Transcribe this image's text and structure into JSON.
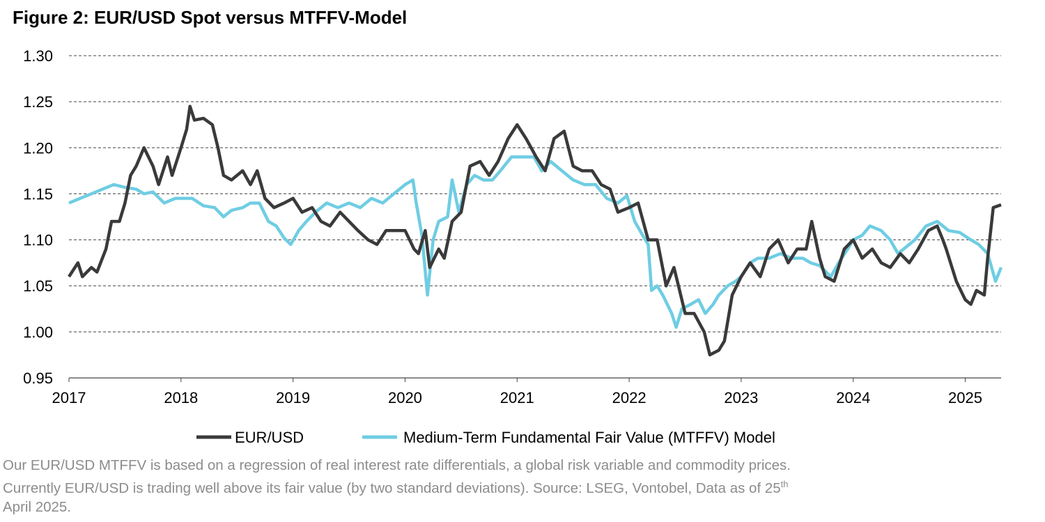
{
  "chart_data": {
    "type": "line",
    "title": "Figure 2: EUR/USD Spot versus MTFFV-Model",
    "xlabel": "",
    "ylabel": "",
    "xlim": [
      2017,
      2025.32
    ],
    "ylim": [
      0.95,
      1.3
    ],
    "yticks": [
      "0.95",
      "1.00",
      "1.05",
      "1.10",
      "1.15",
      "1.20",
      "1.25",
      "1.30"
    ],
    "xticks": [
      "2017",
      "2018",
      "2019",
      "2020",
      "2021",
      "2022",
      "2023",
      "2024",
      "2025"
    ],
    "grid": "horizontal dashed",
    "legend_placement": "bottom",
    "series": [
      {
        "name": "EUR/USD",
        "color": "#3a3a3a",
        "x": [
          2017.0,
          2017.08,
          2017.12,
          2017.2,
          2017.25,
          2017.33,
          2017.38,
          2017.45,
          2017.5,
          2017.55,
          2017.6,
          2017.67,
          2017.75,
          2017.8,
          2017.88,
          2017.92,
          2018.0,
          2018.05,
          2018.08,
          2018.12,
          2018.2,
          2018.28,
          2018.33,
          2018.38,
          2018.45,
          2018.5,
          2018.55,
          2018.62,
          2018.68,
          2018.75,
          2018.83,
          2018.92,
          2019.0,
          2019.08,
          2019.17,
          2019.25,
          2019.33,
          2019.42,
          2019.5,
          2019.58,
          2019.67,
          2019.75,
          2019.83,
          2019.92,
          2020.0,
          2020.08,
          2020.12,
          2020.18,
          2020.22,
          2020.3,
          2020.35,
          2020.42,
          2020.5,
          2020.58,
          2020.67,
          2020.75,
          2020.83,
          2020.92,
          2021.0,
          2021.08,
          2021.17,
          2021.25,
          2021.33,
          2021.42,
          2021.5,
          2021.58,
          2021.67,
          2021.75,
          2021.83,
          2021.9,
          2022.0,
          2022.08,
          2022.17,
          2022.25,
          2022.33,
          2022.4,
          2022.45,
          2022.5,
          2022.58,
          2022.67,
          2022.72,
          2022.8,
          2022.85,
          2022.92,
          2023.0,
          2023.08,
          2023.17,
          2023.25,
          2023.33,
          2023.42,
          2023.5,
          2023.58,
          2023.63,
          2023.7,
          2023.75,
          2023.83,
          2023.92,
          2024.0,
          2024.08,
          2024.17,
          2024.25,
          2024.33,
          2024.42,
          2024.5,
          2024.58,
          2024.67,
          2024.75,
          2024.8,
          2024.83,
          2024.92,
          2025.0,
          2025.05,
          2025.1,
          2025.17,
          2025.2,
          2025.25,
          2025.32
        ],
        "values": [
          1.06,
          1.075,
          1.06,
          1.07,
          1.065,
          1.09,
          1.12,
          1.12,
          1.14,
          1.17,
          1.18,
          1.2,
          1.18,
          1.16,
          1.19,
          1.17,
          1.2,
          1.22,
          1.245,
          1.23,
          1.232,
          1.225,
          1.2,
          1.17,
          1.165,
          1.17,
          1.175,
          1.16,
          1.175,
          1.145,
          1.135,
          1.14,
          1.145,
          1.13,
          1.135,
          1.12,
          1.115,
          1.13,
          1.12,
          1.11,
          1.1,
          1.095,
          1.11,
          1.11,
          1.11,
          1.09,
          1.085,
          1.11,
          1.07,
          1.09,
          1.08,
          1.12,
          1.13,
          1.18,
          1.185,
          1.17,
          1.185,
          1.21,
          1.225,
          1.21,
          1.19,
          1.175,
          1.21,
          1.218,
          1.18,
          1.175,
          1.175,
          1.16,
          1.155,
          1.13,
          1.135,
          1.14,
          1.1,
          1.1,
          1.05,
          1.07,
          1.045,
          1.02,
          1.02,
          1.0,
          0.975,
          0.98,
          0.99,
          1.04,
          1.06,
          1.075,
          1.06,
          1.09,
          1.1,
          1.075,
          1.09,
          1.09,
          1.12,
          1.08,
          1.06,
          1.055,
          1.09,
          1.1,
          1.08,
          1.09,
          1.075,
          1.07,
          1.085,
          1.075,
          1.09,
          1.11,
          1.115,
          1.1,
          1.09,
          1.055,
          1.035,
          1.03,
          1.045,
          1.04,
          1.08,
          1.135,
          1.138
        ]
      },
      {
        "name": "Medium-Term Fundamental Fair Value (MTFFV) Model",
        "color": "#6fcde3",
        "x": [
          2017.0,
          2017.1,
          2017.2,
          2017.3,
          2017.4,
          2017.5,
          2017.6,
          2017.67,
          2017.75,
          2017.85,
          2017.95,
          2018.0,
          2018.1,
          2018.2,
          2018.3,
          2018.38,
          2018.45,
          2018.55,
          2018.62,
          2018.7,
          2018.78,
          2018.85,
          2018.92,
          2018.98,
          2019.05,
          2019.12,
          2019.2,
          2019.3,
          2019.4,
          2019.5,
          2019.6,
          2019.7,
          2019.8,
          2019.9,
          2020.0,
          2020.07,
          2020.1,
          2020.15,
          2020.2,
          2020.25,
          2020.3,
          2020.38,
          2020.42,
          2020.48,
          2020.55,
          2020.62,
          2020.7,
          2020.78,
          2020.85,
          2020.95,
          2021.05,
          2021.15,
          2021.22,
          2021.3,
          2021.4,
          2021.5,
          2021.6,
          2021.7,
          2021.8,
          2021.9,
          2021.98,
          2022.05,
          2022.12,
          2022.17,
          2022.2,
          2022.25,
          2022.3,
          2022.38,
          2022.42,
          2022.47,
          2022.55,
          2022.62,
          2022.68,
          2022.75,
          2022.8,
          2022.88,
          2022.95,
          2023.0,
          2023.08,
          2023.15,
          2023.25,
          2023.35,
          2023.45,
          2023.55,
          2023.62,
          2023.7,
          2023.8,
          2023.87,
          2023.95,
          2024.0,
          2024.08,
          2024.15,
          2024.25,
          2024.33,
          2024.4,
          2024.45,
          2024.55,
          2024.65,
          2024.75,
          2024.85,
          2024.95,
          2025.05,
          2025.12,
          2025.2,
          2025.27,
          2025.32
        ],
        "values": [
          1.14,
          1.145,
          1.15,
          1.155,
          1.16,
          1.157,
          1.155,
          1.15,
          1.152,
          1.14,
          1.145,
          1.145,
          1.145,
          1.137,
          1.135,
          1.125,
          1.132,
          1.135,
          1.14,
          1.14,
          1.12,
          1.115,
          1.102,
          1.095,
          1.11,
          1.12,
          1.13,
          1.14,
          1.135,
          1.14,
          1.135,
          1.145,
          1.14,
          1.15,
          1.16,
          1.165,
          1.14,
          1.105,
          1.04,
          1.1,
          1.12,
          1.125,
          1.165,
          1.13,
          1.16,
          1.17,
          1.165,
          1.165,
          1.175,
          1.19,
          1.19,
          1.19,
          1.175,
          1.185,
          1.175,
          1.165,
          1.16,
          1.16,
          1.145,
          1.14,
          1.148,
          1.12,
          1.105,
          1.095,
          1.045,
          1.05,
          1.04,
          1.02,
          1.005,
          1.025,
          1.03,
          1.035,
          1.02,
          1.03,
          1.04,
          1.05,
          1.055,
          1.06,
          1.075,
          1.08,
          1.08,
          1.085,
          1.08,
          1.08,
          1.075,
          1.072,
          1.06,
          1.075,
          1.09,
          1.1,
          1.105,
          1.115,
          1.11,
          1.1,
          1.085,
          1.09,
          1.1,
          1.115,
          1.12,
          1.11,
          1.108,
          1.1,
          1.095,
          1.085,
          1.055,
          1.07
        ]
      }
    ],
    "caption_lines": [
      "Our EUR/USD MTFFV is based on a regression of real interest rate differentials, a global risk variable and commodity prices.",
      "Currently EUR/USD is trading well above its fair value (by two standard deviations). Source: LSEG,  Vontobel, Data as of  25"
    ],
    "caption_sup": "th",
    "caption_end": "April 2025."
  }
}
